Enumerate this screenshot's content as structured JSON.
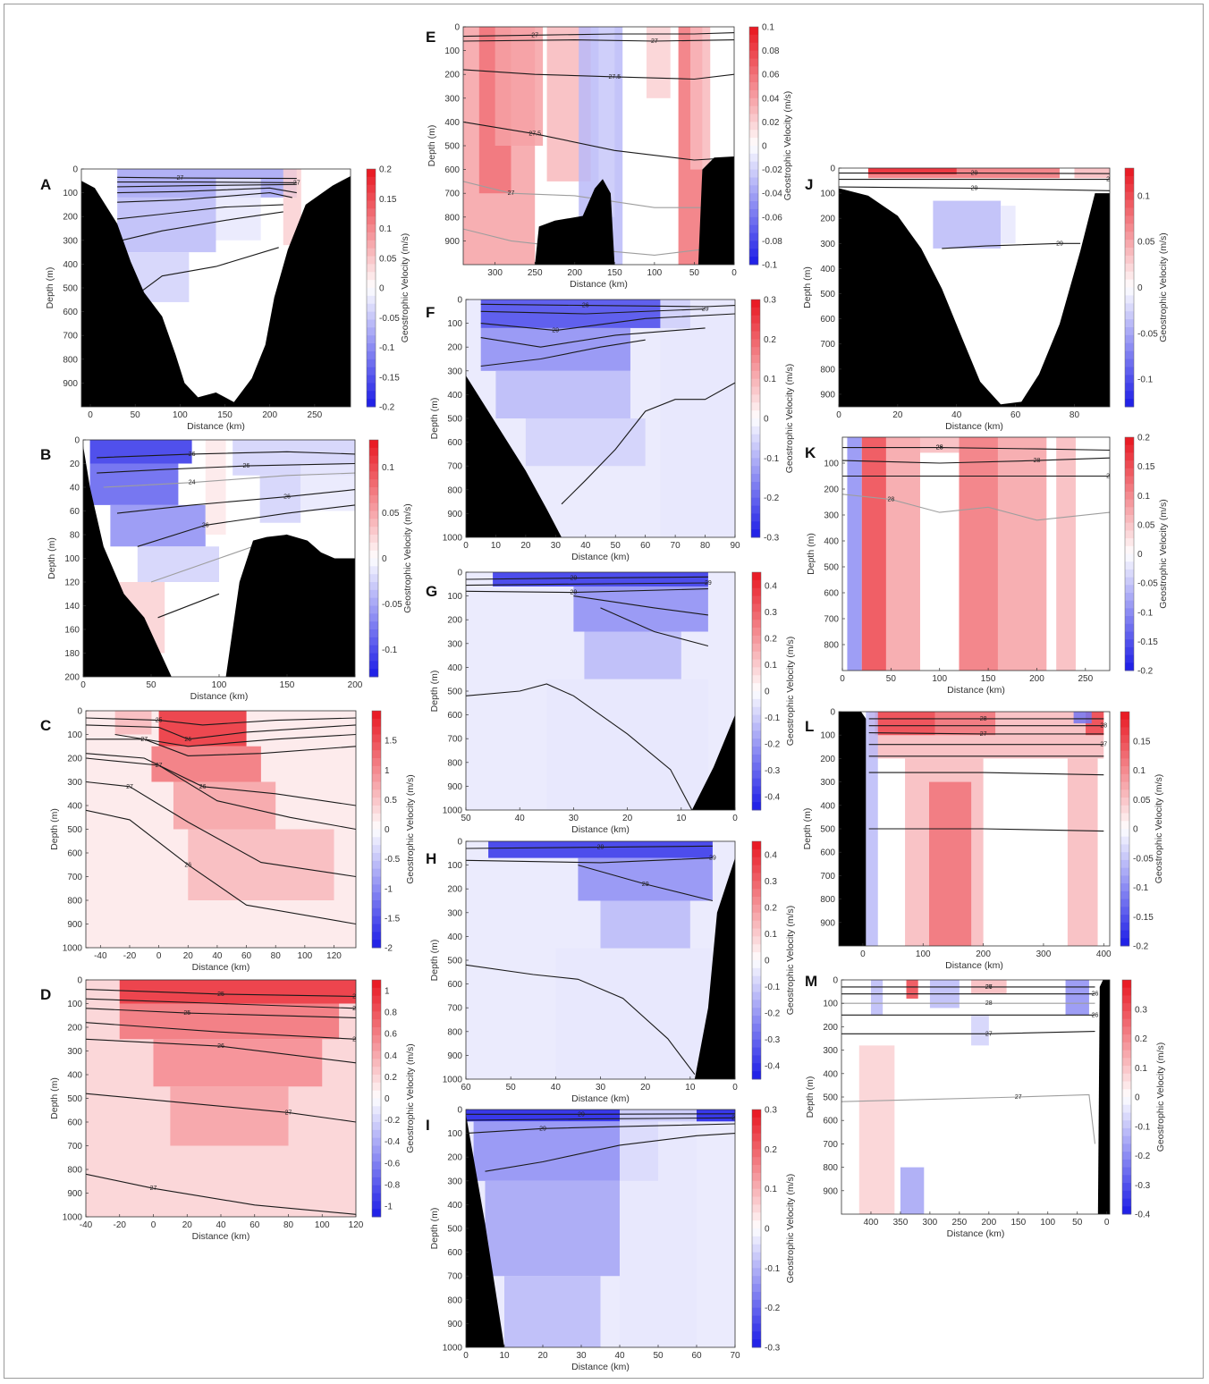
{
  "colors": {
    "red": "#e8141e",
    "blue": "#1a1ae6",
    "land": "#000000",
    "contour": "#1a1a1a",
    "thin_contour": "#9e9e9e"
  },
  "chart_data": [
    {
      "panel": "A",
      "type": "heatmap",
      "xlabel": "Distance (km)",
      "ylabel": "Depth (m)",
      "cbar_label": "Geostrophic Velocity (m/s)",
      "xlim": [
        -10,
        290
      ],
      "ylim": [
        0,
        1000
      ],
      "xticks": [
        0,
        50,
        100,
        150,
        200,
        250
      ],
      "yticks": [
        100,
        200,
        300,
        400,
        500,
        600,
        700,
        800,
        900
      ],
      "yticks0": true,
      "cbar_range": [
        -0.2,
        0.2
      ],
      "cbar_ticks": [
        0.2,
        0.15,
        0.1,
        0.05,
        0,
        -0.05,
        -0.1,
        -0.15,
        -0.2
      ],
      "contour_labels": [
        "27",
        "27"
      ],
      "bottom": [
        [
          -10,
          50
        ],
        [
          5,
          80
        ],
        [
          20,
          170
        ],
        [
          30,
          230
        ],
        [
          45,
          390
        ],
        [
          60,
          520
        ],
        [
          80,
          620
        ],
        [
          95,
          780
        ],
        [
          105,
          900
        ],
        [
          120,
          960
        ],
        [
          140,
          940
        ],
        [
          160,
          980
        ],
        [
          180,
          880
        ],
        [
          195,
          740
        ],
        [
          205,
          540
        ],
        [
          220,
          340
        ],
        [
          240,
          150
        ],
        [
          270,
          70
        ],
        [
          290,
          30
        ]
      ]
    },
    {
      "panel": "B",
      "type": "heatmap",
      "xlabel": "Distance (km)",
      "ylabel": "Depth (m)",
      "cbar_label": "Geostrophic Velocity (m/s)",
      "xlim": [
        0,
        200
      ],
      "ylim": [
        0,
        200
      ],
      "xticks": [
        0,
        50,
        100,
        150,
        200
      ],
      "yticks": [
        20,
        40,
        60,
        80,
        100,
        120,
        140,
        160,
        180,
        200
      ],
      "yticks0": true,
      "cbar_range": [
        -0.13,
        0.13
      ],
      "cbar_ticks": [
        0.1,
        0.05,
        0,
        -0.05,
        -0.1
      ],
      "contour_labels": [
        "26",
        "26",
        "24",
        "26",
        "26"
      ],
      "bottom": [
        [
          0,
          5
        ],
        [
          5,
          40
        ],
        [
          15,
          90
        ],
        [
          30,
          130
        ],
        [
          45,
          150
        ],
        [
          55,
          175
        ],
        [
          65,
          200
        ],
        [
          105,
          200
        ],
        [
          115,
          120
        ],
        [
          125,
          85
        ],
        [
          135,
          82
        ],
        [
          150,
          80
        ],
        [
          165,
          85
        ],
        [
          175,
          95
        ],
        [
          185,
          100
        ],
        [
          200,
          100
        ]
      ]
    },
    {
      "panel": "C",
      "type": "heatmap",
      "xlabel": "Distance (km)",
      "ylabel": "Depth (m)",
      "cbar_label": "Geostrophic Velocity (m/s)",
      "xlim": [
        -50,
        135
      ],
      "ylim": [
        0,
        1000
      ],
      "xticks": [
        -40,
        -20,
        0,
        20,
        40,
        60,
        80,
        100,
        120
      ],
      "yticks": [
        100,
        200,
        300,
        400,
        500,
        600,
        700,
        800,
        900,
        1000
      ],
      "yticks0": true,
      "cbar_range": [
        -2,
        2
      ],
      "cbar_ticks": [
        1.5,
        1,
        0.5,
        0,
        -0.5,
        -1,
        -1.5,
        -2
      ],
      "contour_labels": [
        "25",
        "26",
        "27",
        "26",
        "27",
        "26",
        "27"
      ],
      "bottom": null
    },
    {
      "panel": "D",
      "type": "heatmap",
      "xlabel": "Distance (km)",
      "ylabel": "Depth (m)",
      "cbar_label": "Geostrophic Velocity (m/s)",
      "xlim": [
        -40,
        120
      ],
      "ylim": [
        0,
        1000
      ],
      "xticks": [
        -40,
        -20,
        0,
        20,
        40,
        60,
        80,
        100,
        120
      ],
      "yticks": [
        100,
        200,
        300,
        400,
        500,
        600,
        700,
        800,
        900,
        1000
      ],
      "yticks0": true,
      "cbar_range": [
        -1.1,
        1.1
      ],
      "cbar_ticks": [
        1,
        0.8,
        0.6,
        0.4,
        0.2,
        0,
        -0.2,
        -0.4,
        -0.6,
        -0.8,
        -1
      ],
      "contour_labels": [
        "25",
        "24",
        "25",
        "26",
        "26",
        "27",
        "27",
        "27"
      ],
      "bottom": null
    },
    {
      "panel": "E",
      "type": "heatmap",
      "xlabel": "Distance (km)",
      "ylabel": "Depth (m)",
      "cbar_label": "Geostrophic Velocity (m/s)",
      "xlim": [
        340,
        0
      ],
      "ylim": [
        0,
        1000
      ],
      "xticks": [
        300,
        250,
        200,
        150,
        100,
        50,
        0
      ],
      "yticks": [
        100,
        200,
        300,
        400,
        500,
        600,
        700,
        800,
        900
      ],
      "yticks0": true,
      "cbar_range": [
        -0.1,
        0.1
      ],
      "cbar_ticks": [
        0.1,
        0.08,
        0.06,
        0.04,
        0.02,
        0,
        -0.02,
        -0.04,
        -0.06,
        -0.08,
        -0.1
      ],
      "contour_labels": [
        "27",
        "27",
        "27",
        "27.5",
        "27.5"
      ],
      "bottom": [
        [
          250,
          1000
        ],
        [
          245,
          840
        ],
        [
          225,
          815
        ],
        [
          190,
          795
        ],
        [
          175,
          680
        ],
        [
          165,
          640
        ],
        [
          155,
          700
        ],
        [
          150,
          1000
        ],
        [
          45,
          1000
        ],
        [
          40,
          600
        ],
        [
          25,
          550
        ],
        [
          0,
          545
        ]
      ]
    },
    {
      "panel": "F",
      "type": "heatmap",
      "xlabel": "Distance (km)",
      "ylabel": "Depth (m)",
      "cbar_label": "Geostrophic Velocity (m/s)",
      "xlim": [
        0,
        90
      ],
      "ylim": [
        0,
        1000
      ],
      "xticks": [
        0,
        10,
        20,
        30,
        40,
        50,
        60,
        70,
        80,
        90
      ],
      "yticks": [
        100,
        200,
        300,
        400,
        500,
        600,
        700,
        800,
        900,
        1000
      ],
      "yticks0": true,
      "cbar_range": [
        -0.3,
        0.3
      ],
      "cbar_ticks": [
        0.3,
        0.2,
        0.1,
        0,
        -0.1,
        -0.2,
        -0.3
      ],
      "contour_labels": [
        "26",
        "29",
        "29"
      ],
      "bottom": [
        [
          0,
          320
        ],
        [
          10,
          520
        ],
        [
          20,
          720
        ],
        [
          27,
          880
        ],
        [
          32,
          1000
        ]
      ]
    },
    {
      "panel": "G",
      "type": "heatmap",
      "xlabel": "Distance (km)",
      "ylabel": "Depth (m)",
      "cbar_label": "Geostrophic Velocity (m/s)",
      "xlim": [
        50,
        0
      ],
      "ylim": [
        0,
        1000
      ],
      "xticks": [
        50,
        40,
        30,
        20,
        10,
        0
      ],
      "yticks": [
        100,
        200,
        300,
        400,
        500,
        600,
        700,
        800,
        900,
        1000
      ],
      "yticks0": true,
      "cbar_range": [
        -0.45,
        0.45
      ],
      "cbar_ticks": [
        0.4,
        0.3,
        0.2,
        0.1,
        0,
        -0.1,
        -0.2,
        -0.3,
        -0.4
      ],
      "contour_labels": [
        "29",
        "29",
        "29"
      ],
      "bottom": [
        [
          8,
          1000
        ],
        [
          4,
          820
        ],
        [
          0,
          600
        ]
      ]
    },
    {
      "panel": "H",
      "type": "heatmap",
      "xlabel": "Distance (km)",
      "ylabel": "Depth (m)",
      "cbar_label": "Geostrophic Velocity (m/s)",
      "xlim": [
        60,
        0
      ],
      "ylim": [
        0,
        1000
      ],
      "xticks": [
        60,
        50,
        40,
        30,
        20,
        10,
        0
      ],
      "yticks": [
        100,
        200,
        300,
        400,
        500,
        600,
        700,
        800,
        900,
        1000
      ],
      "yticks0": true,
      "cbar_range": [
        -0.45,
        0.45
      ],
      "cbar_ticks": [
        0.4,
        0.3,
        0.2,
        0.1,
        0,
        -0.1,
        -0.2,
        -0.3,
        -0.4
      ],
      "contour_labels": [
        "29",
        "29",
        "29"
      ],
      "bottom": [
        [
          9,
          1000
        ],
        [
          6,
          700
        ],
        [
          4,
          300
        ],
        [
          0,
          70
        ]
      ]
    },
    {
      "panel": "I",
      "type": "heatmap",
      "xlabel": "Distance (km)",
      "ylabel": "Depth (m)",
      "cbar_label": "Geostrophic Velocity (m/s)",
      "xlim": [
        0,
        70
      ],
      "ylim": [
        0,
        1000
      ],
      "xticks": [
        0,
        10,
        20,
        30,
        40,
        50,
        60,
        70
      ],
      "yticks": [
        100,
        200,
        300,
        400,
        500,
        600,
        700,
        800,
        900,
        1000
      ],
      "yticks0": true,
      "cbar_range": [
        -0.3,
        0.3
      ],
      "cbar_ticks": [
        0.3,
        0.2,
        0.1,
        0,
        -0.1,
        -0.2,
        -0.3
      ],
      "contour_labels": [
        "29",
        "29",
        "29"
      ],
      "bottom": [
        [
          0,
          20
        ],
        [
          5,
          480
        ],
        [
          10,
          1000
        ]
      ]
    },
    {
      "panel": "J",
      "type": "heatmap",
      "xlabel": "Distance (km)",
      "ylabel": "Depth (m)",
      "cbar_label": "Geostrophic Velocity (m/s)",
      "xlim": [
        0,
        92
      ],
      "ylim": [
        0,
        950
      ],
      "xticks": [
        0,
        20,
        40,
        60,
        80
      ],
      "yticks": [
        100,
        200,
        300,
        400,
        500,
        600,
        700,
        800,
        900
      ],
      "yticks0": true,
      "cbar_range": [
        -0.13,
        0.13
      ],
      "cbar_ticks": [
        0.1,
        0.05,
        0,
        -0.05,
        -0.1
      ],
      "contour_labels": [
        "29",
        "26",
        "29",
        "29"
      ],
      "bottom": [
        [
          0,
          80
        ],
        [
          10,
          110
        ],
        [
          20,
          190
        ],
        [
          28,
          320
        ],
        [
          35,
          480
        ],
        [
          42,
          680
        ],
        [
          48,
          850
        ],
        [
          55,
          940
        ],
        [
          62,
          930
        ],
        [
          68,
          820
        ],
        [
          75,
          620
        ],
        [
          82,
          330
        ],
        [
          87,
          100
        ],
        [
          92,
          100
        ]
      ]
    },
    {
      "panel": "K",
      "type": "heatmap",
      "xlabel": "Distance (km)",
      "ylabel": "Depth (m)",
      "cbar_label": "Geostrophic Velocity (m/s)",
      "xlim": [
        0,
        275
      ],
      "ylim": [
        0,
        900
      ],
      "xticks": [
        0,
        50,
        100,
        150,
        200,
        250
      ],
      "yticks": [
        100,
        200,
        300,
        400,
        500,
        600,
        700,
        800
      ],
      "yticks0": false,
      "cbar_range": [
        -0.2,
        0.2
      ],
      "cbar_ticks": [
        0.2,
        0.15,
        0.1,
        0.05,
        0,
        -0.05,
        -0.1,
        -0.15,
        -0.2
      ],
      "contour_labels": [
        "25",
        "28",
        "28",
        "28",
        "28"
      ],
      "bottom": null
    },
    {
      "panel": "L",
      "type": "heatmap",
      "xlabel": "Distance (km)",
      "ylabel": "Depth (m)",
      "cbar_label": "Geostrophic Velocity (m/s)",
      "xlim": [
        -40,
        410
      ],
      "ylim": [
        0,
        1000
      ],
      "xticks": [
        0,
        100,
        200,
        300,
        400
      ],
      "yticks": [
        100,
        200,
        300,
        400,
        500,
        600,
        700,
        800,
        900
      ],
      "yticks0": true,
      "cbar_range": [
        -0.2,
        0.2
      ],
      "cbar_ticks": [
        0.15,
        0.1,
        0.05,
        0,
        -0.05,
        -0.1,
        -0.15,
        -0.2
      ],
      "contour_labels": [
        "28",
        "28",
        "27",
        "27"
      ],
      "bottom": [
        [
          -40,
          0
        ],
        [
          -5,
          0
        ],
        [
          5,
          30
        ],
        [
          5,
          1000
        ]
      ]
    },
    {
      "panel": "M",
      "type": "heatmap",
      "xlabel": "Distance (km)",
      "ylabel": "Depth (m)",
      "cbar_label": "Geostrophic Velocity (m/s)",
      "xlim": [
        450,
        -5
      ],
      "ylim": [
        0,
        1000
      ],
      "xticks": [
        400,
        350,
        300,
        250,
        200,
        150,
        100,
        50,
        0
      ],
      "yticks": [
        100,
        200,
        300,
        400,
        500,
        600,
        700,
        800,
        900
      ],
      "yticks0": true,
      "cbar_range": [
        -0.4,
        0.4
      ],
      "cbar_ticks": [
        0.3,
        0.2,
        0.1,
        0,
        -0.1,
        -0.2,
        -0.3,
        -0.4
      ],
      "contour_labels": [
        "26",
        "26",
        "28",
        "26",
        "27",
        "27",
        "27"
      ],
      "bottom": [
        [
          15,
          1000
        ],
        [
          12,
          30
        ],
        [
          5,
          0
        ],
        [
          -5,
          0
        ]
      ]
    }
  ]
}
